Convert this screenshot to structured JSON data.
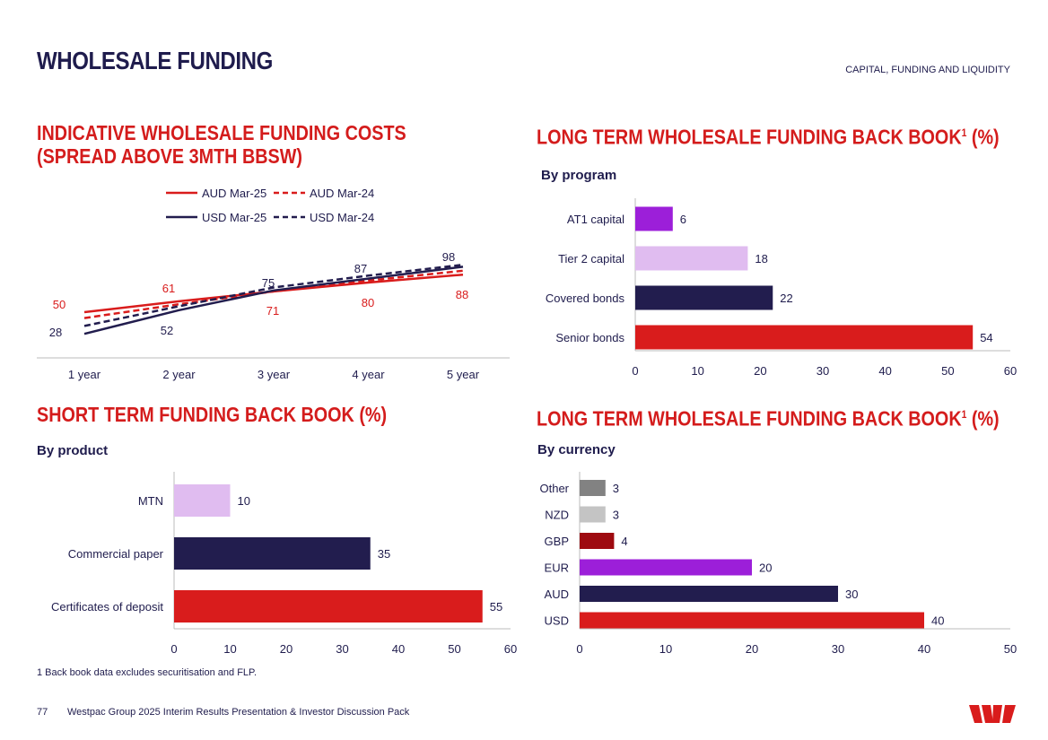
{
  "header": {
    "title": "WHOLESALE FUNDING",
    "section": "CAPITAL, FUNDING AND LIQUIDITY"
  },
  "footer": {
    "footnote": "1 Back book data excludes securitisation and FLP.",
    "page_number": "77",
    "doc_title": "Westpac Group 2025 Interim Results Presentation & Investor Discussion Pack"
  },
  "colors": {
    "red": "#d91c1c",
    "navy": "#221d4e",
    "purple": "#9c1fd9",
    "lilac": "#e0bcf0",
    "darkred": "#9e0a10",
    "grey": "#828282",
    "lightgrey": "#c4c4c4"
  },
  "chart_data": [
    {
      "id": "costs",
      "type": "line",
      "title_line1": "INDICATIVE WHOLESALE FUNDING COSTS",
      "title_line2": "(SPREAD ABOVE 3MTH BBSW)",
      "categories": [
        "1 year",
        "2 year",
        "3 year",
        "4 year",
        "5 year"
      ],
      "legend_position": "top",
      "series": [
        {
          "name": "AUD Mar-25",
          "style": "solid",
          "color": "red",
          "values": [
            50,
            61,
            71,
            80,
            88
          ]
        },
        {
          "name": "AUD Mar-24",
          "style": "dashed",
          "color": "red",
          "values": [
            44,
            58,
            71,
            82,
            92
          ]
        },
        {
          "name": "USD Mar-25",
          "style": "solid",
          "color": "navy",
          "values": [
            28,
            52,
            72,
            84,
            96
          ]
        },
        {
          "name": "USD Mar-24",
          "style": "dashed",
          "color": "navy",
          "values": [
            36,
            56,
            75,
            87,
            98
          ]
        }
      ],
      "labels": [
        {
          "text": "50",
          "color": "red"
        },
        {
          "text": "61",
          "color": "red"
        },
        {
          "text": "71",
          "color": "red"
        },
        {
          "text": "80",
          "color": "red"
        },
        {
          "text": "88",
          "color": "red"
        },
        {
          "text": "28",
          "color": "navy"
        },
        {
          "text": "52",
          "color": "navy"
        },
        {
          "text": "75",
          "color": "navy"
        },
        {
          "text": "87",
          "color": "navy"
        },
        {
          "text": "98",
          "color": "navy"
        }
      ]
    },
    {
      "id": "ltprog",
      "type": "bar",
      "orientation": "horizontal",
      "title": "LONG TERM WHOLESALE FUNDING BACK BOOK",
      "title_sup": "1",
      "title_suffix": " (%)",
      "subtitle": "By program",
      "categories": [
        "AT1 capital",
        "Tier 2 capital",
        "Covered bonds",
        "Senior bonds"
      ],
      "values": [
        6,
        18,
        22,
        54
      ],
      "colors": [
        "purple",
        "lilac",
        "navy",
        "red"
      ],
      "xlim": [
        0,
        60
      ],
      "ticks": [
        0,
        10,
        20,
        30,
        40,
        50,
        60
      ]
    },
    {
      "id": "st",
      "type": "bar",
      "orientation": "horizontal",
      "title": "SHORT TERM FUNDING BACK BOOK (%)",
      "subtitle": "By product",
      "categories": [
        "MTN",
        "Commercial paper",
        "Certificates of deposit"
      ],
      "values": [
        10,
        35,
        55
      ],
      "colors": [
        "lilac",
        "navy",
        "red"
      ],
      "xlim": [
        0,
        60
      ],
      "ticks": [
        0,
        10,
        20,
        30,
        40,
        50,
        60
      ]
    },
    {
      "id": "ltcur",
      "type": "bar",
      "orientation": "horizontal",
      "title": "LONG TERM WHOLESALE FUNDING BACK BOOK",
      "title_sup": "1",
      "title_suffix": " (%)",
      "subtitle": "By currency",
      "categories": [
        "Other",
        "NZD",
        "GBP",
        "EUR",
        "AUD",
        "USD"
      ],
      "values": [
        3,
        3,
        4,
        20,
        30,
        40
      ],
      "colors": [
        "grey",
        "lightgrey",
        "darkred",
        "purple",
        "navy",
        "red"
      ],
      "xlim": [
        0,
        50
      ],
      "ticks": [
        0,
        10,
        20,
        30,
        40,
        50
      ]
    }
  ]
}
